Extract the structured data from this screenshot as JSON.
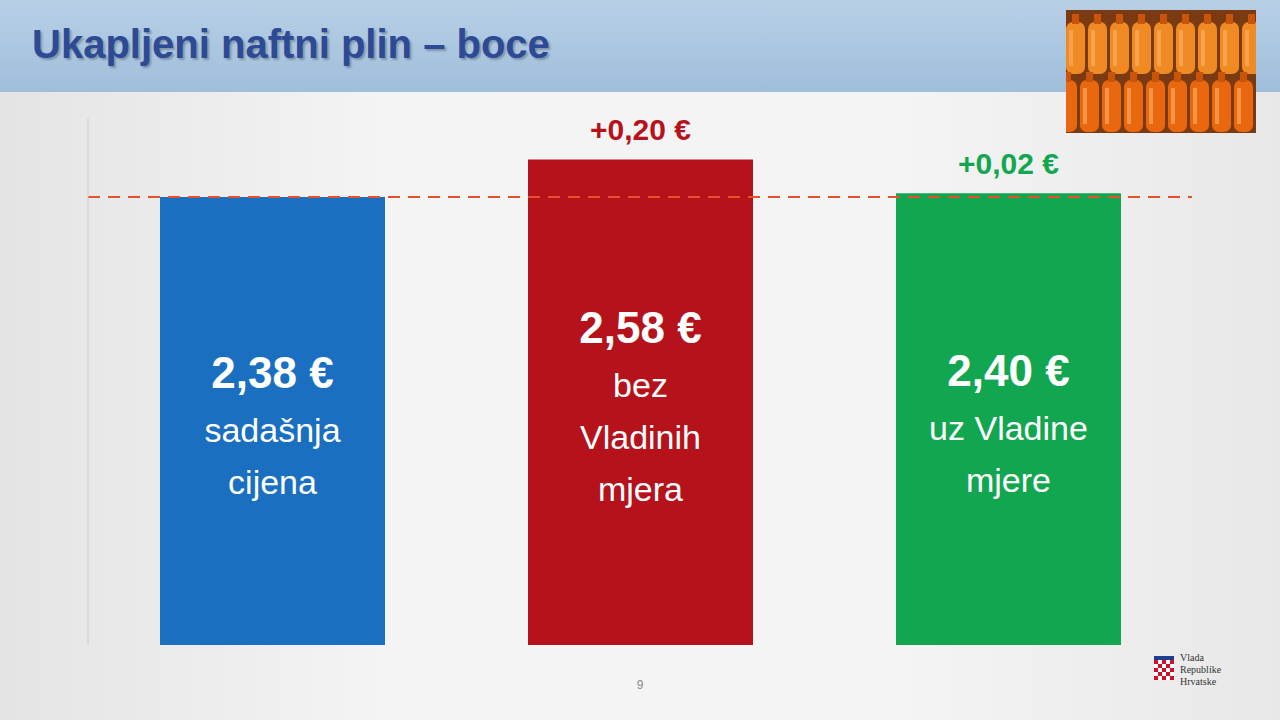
{
  "chart_data": {
    "type": "bar",
    "title": "Ukapljeni naftni plin – boce",
    "categories": [
      "sadašnja cijena",
      "bez Vladinih mjera",
      "uz Vladine mjere"
    ],
    "values": [
      2.38,
      2.58,
      2.4
    ],
    "value_labels": [
      "2,38 €",
      "2,58 €",
      "2,40 €"
    ],
    "colors": [
      "#1a6fc0",
      "#b5121b",
      "#12a650"
    ],
    "ylim": [
      0,
      2.8
    ],
    "yticks": [],
    "tick_labels": false,
    "grid": false,
    "data_labels": true,
    "annotations": [
      null,
      "+0,20 €",
      "+0,02 €"
    ],
    "reference_line": 2.38,
    "page_number": "9",
    "logo_text": "Vlada Republike Hrvatske"
  }
}
